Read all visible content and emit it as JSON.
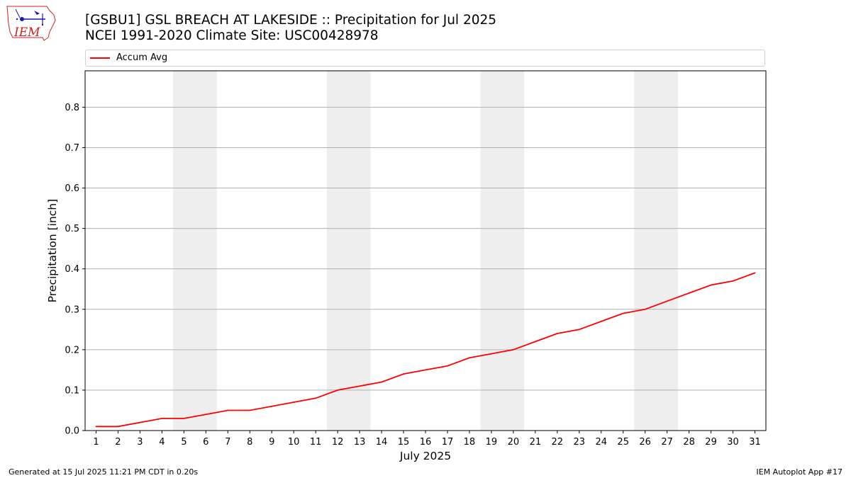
{
  "header": {
    "title_line1": "[GSBU1] GSL BREACH AT LAKESIDE :: Precipitation for Jul 2025",
    "title_line2": "NCEI 1991-2020 Climate Site: USC00428978",
    "logo_text": "IEM"
  },
  "footer": {
    "generated": "Generated at 15 Jul 2025 11:21 PM CDT in 0.20s",
    "app": "IEM Autoplot App #17"
  },
  "colors": {
    "series": "#ff0000",
    "weekend_band": "#eeeeee",
    "grid": "#b0b0b0",
    "logo": "#1a1aa8",
    "logo_text": "#cc2222"
  },
  "chart_data": {
    "type": "line",
    "xlabel": "July 2025",
    "ylabel": "Precipitation [inch]",
    "x": [
      1,
      2,
      3,
      4,
      5,
      6,
      7,
      8,
      9,
      10,
      11,
      12,
      13,
      14,
      15,
      16,
      17,
      18,
      19,
      20,
      21,
      22,
      23,
      24,
      25,
      26,
      27,
      28,
      29,
      30,
      31
    ],
    "xlim": [
      0.5,
      31.5
    ],
    "ylim": [
      0,
      0.89
    ],
    "yticks": [
      0.0,
      0.1,
      0.2,
      0.3,
      0.4,
      0.5,
      0.6,
      0.7,
      0.8
    ],
    "ytick_labels": [
      "0.0",
      "0.1",
      "0.2",
      "0.3",
      "0.4",
      "0.5",
      "0.6",
      "0.7",
      "0.8"
    ],
    "grid": "horizontal",
    "legend": "top, above plot",
    "shaded_days": [
      [
        5,
        6
      ],
      [
        12,
        13
      ],
      [
        19,
        20
      ],
      [
        26,
        27
      ]
    ],
    "series": [
      {
        "name": "Accum Avg",
        "values": [
          0.01,
          0.01,
          0.02,
          0.03,
          0.03,
          0.04,
          0.05,
          0.05,
          0.06,
          0.07,
          0.08,
          0.1,
          0.11,
          0.12,
          0.14,
          0.15,
          0.16,
          0.18,
          0.19,
          0.2,
          0.22,
          0.24,
          0.25,
          0.27,
          0.29,
          0.3,
          0.32,
          0.34,
          0.36,
          0.37,
          0.39
        ]
      }
    ]
  }
}
